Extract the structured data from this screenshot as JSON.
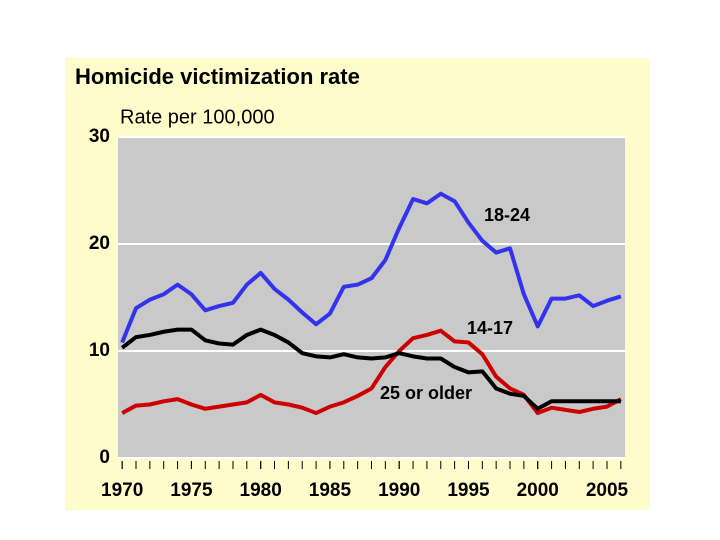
{
  "chart_data": {
    "type": "line",
    "title": "Homicide victimization rate",
    "y_label": "Rate per 100,000",
    "x": [
      1970,
      1971,
      1972,
      1973,
      1974,
      1975,
      1976,
      1977,
      1978,
      1979,
      1980,
      1981,
      1982,
      1983,
      1984,
      1985,
      1986,
      1987,
      1988,
      1989,
      1990,
      1991,
      1992,
      1993,
      1994,
      1995,
      1996,
      1997,
      1998,
      1999,
      2000,
      2001,
      2002,
      2003,
      2004,
      2005,
      2006
    ],
    "series": [
      {
        "name": "18-24",
        "color": "#3333ee",
        "values": [
          10.8,
          14.0,
          14.8,
          15.3,
          16.2,
          15.3,
          13.8,
          14.2,
          14.5,
          16.2,
          17.3,
          15.8,
          14.8,
          13.6,
          12.5,
          13.5,
          16.0,
          16.2,
          16.8,
          18.5,
          21.5,
          24.2,
          23.8,
          24.7,
          24.0,
          22.0,
          20.3,
          19.2,
          19.6,
          15.3,
          12.3,
          14.9,
          14.9,
          15.2,
          14.2,
          14.7,
          15.1
        ]
      },
      {
        "name": "14-17",
        "color": "#cc0000",
        "values": [
          4.2,
          4.9,
          5.0,
          5.3,
          5.5,
          5.0,
          4.6,
          4.8,
          5.0,
          5.2,
          5.9,
          5.2,
          5.0,
          4.7,
          4.2,
          4.8,
          5.2,
          5.8,
          6.5,
          8.5,
          10.0,
          11.2,
          11.5,
          11.9,
          10.9,
          10.8,
          9.7,
          7.6,
          6.5,
          5.9,
          4.2,
          4.7,
          4.5,
          4.3,
          4.6,
          4.8,
          5.5
        ]
      },
      {
        "name": "25 or older",
        "color": "#000000",
        "values": [
          10.3,
          11.3,
          11.5,
          11.8,
          12.0,
          12.0,
          11.0,
          10.7,
          10.6,
          11.5,
          12.0,
          11.5,
          10.8,
          9.8,
          9.5,
          9.4,
          9.7,
          9.4,
          9.3,
          9.4,
          9.8,
          9.5,
          9.3,
          9.3,
          8.5,
          8.0,
          8.1,
          6.5,
          6.0,
          5.8,
          4.6,
          5.3,
          5.3,
          5.3,
          5.3,
          5.3,
          5.3
        ]
      }
    ],
    "xlim": [
      1969.7,
      2006.3
    ],
    "xticks": [
      1970,
      1975,
      1980,
      1985,
      1990,
      1995,
      2000,
      2005
    ],
    "minor_xticks": [
      1970,
      1971,
      1972,
      1973,
      1974,
      1975,
      1976,
      1977,
      1978,
      1979,
      1980,
      1981,
      1982,
      1983,
      1984,
      1985,
      1986,
      1987,
      1988,
      1989,
      1990,
      1991,
      1992,
      1993,
      1994,
      1995,
      1996,
      1997,
      1998,
      1999,
      2000,
      2001,
      2002,
      2003,
      2004,
      2005,
      2006
    ],
    "ylim": [
      0,
      30
    ],
    "yticks": [
      0,
      10,
      20,
      30
    ],
    "grid": true
  }
}
